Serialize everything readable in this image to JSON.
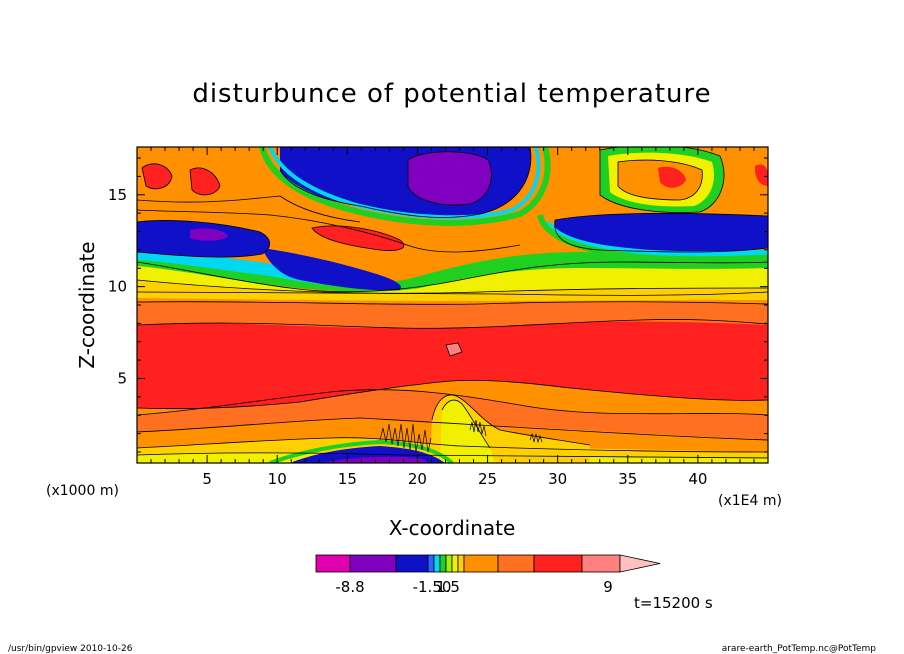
{
  "chart_data": {
    "type": "heatmap",
    "title": "disturbunce of potential temperature",
    "xlabel": "X-coordinate",
    "ylabel": "Z-coordinate",
    "x_unit_left": "(x1000 m)",
    "x_unit_right": "(x1E4 m)",
    "xlim": [
      0,
      45
    ],
    "ylim": [
      0.4,
      17.6
    ],
    "x_ticks": [
      5,
      10,
      15,
      20,
      25,
      30,
      35,
      40
    ],
    "x_tick_labels": [
      "5",
      "10",
      "15",
      "20",
      "25",
      "30",
      "35",
      "40"
    ],
    "y_ticks": [
      5,
      10,
      15
    ],
    "y_tick_labels": [
      "5",
      "10",
      "15"
    ],
    "time_label": "t=15200 s",
    "colorbar": {
      "labels": [
        {
          "text": "-8.8",
          "value": -8.8
        },
        {
          "text": "-1.50",
          "value": -1.5
        },
        {
          "text": "1.5",
          "value": 1.5
        },
        {
          "text": "9",
          "value": 9
        }
      ],
      "colors": [
        "#e000b0",
        "#8000c0",
        "#1010c8",
        "#3060ff",
        "#00d8f0",
        "#20d020",
        "#a0f000",
        "#f0f000",
        "#ffd000",
        "#ff9000",
        "#ff7020",
        "#ff2020",
        "#ff8080",
        "#ffc0c0"
      ]
    },
    "level_colors": {
      "deep_purple": "#8000c0",
      "blue": "#1010c8",
      "light_blue": "#3060ff",
      "cyan": "#00d8f0",
      "green": "#20d020",
      "yellow_green": "#a0f000",
      "yellow": "#f0f000",
      "gold": "#ffd000",
      "orange": "#ff7020",
      "red": "#ff2020",
      "pink": "#ff8080"
    },
    "regions": [
      {
        "name": "background",
        "color": "orange",
        "x": [
          0,
          45
        ],
        "y": [
          0.4,
          17.6
        ]
      },
      {
        "name": "upper-red-band",
        "color": "red",
        "x": [
          0,
          45
        ],
        "y": [
          4.2,
          7.8
        ]
      },
      {
        "name": "lower-yellow-base",
        "color": "yellow",
        "x": [
          0,
          45
        ],
        "y": [
          0.4,
          1.4
        ]
      },
      {
        "name": "central-yellow-plume",
        "color": "gold",
        "x": [
          21,
          32
        ],
        "y": [
          0.4,
          3.4
        ]
      },
      {
        "name": "top-purple-cell",
        "color": "deep_purple",
        "x": [
          19.5,
          25.5
        ],
        "y": [
          14.8,
          17.4
        ]
      },
      {
        "name": "top-blue-cell",
        "color": "blue",
        "x": [
          10,
          27
        ],
        "y": [
          14.2,
          17.6
        ]
      },
      {
        "name": "left-blue-band",
        "color": "blue",
        "x": [
          0,
          9
        ],
        "y": [
          11.6,
          13.8
        ]
      },
      {
        "name": "right-blue-band",
        "color": "blue",
        "x": [
          29.5,
          45
        ],
        "y": [
          11.8,
          13.8
        ]
      },
      {
        "name": "bottom-blue-pocket",
        "color": "blue",
        "x": [
          11,
          22
        ],
        "y": [
          0.4,
          1.0
        ]
      },
      {
        "name": "small-pink-spot",
        "color": "pink",
        "x": [
          21.5,
          22.3
        ],
        "y": [
          5.8,
          6.4
        ]
      }
    ]
  },
  "footer": {
    "left": "/usr/bin/gpview  2010-10-26",
    "right": "arare-earth_PotTemp.nc@PotTemp"
  }
}
